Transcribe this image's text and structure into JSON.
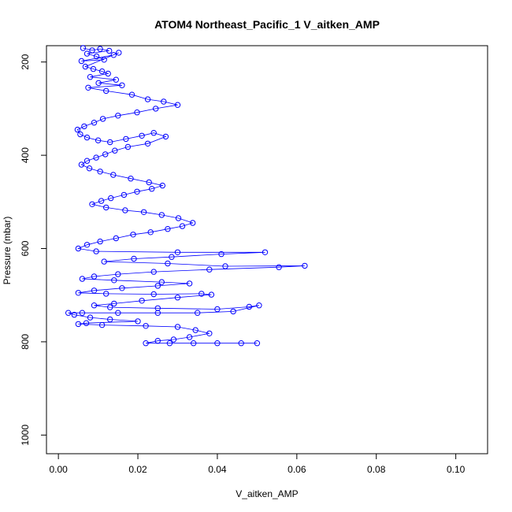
{
  "chart_data": {
    "type": "scatter",
    "title": "ATOM4 Northeast_Pacific_1 V_aitken_AMP",
    "xlabel": "V_aitken_AMP",
    "ylabel": "Pressure (mbar)",
    "xlim": [
      -0.003,
      0.108
    ],
    "ylim": [
      1040,
      165
    ],
    "y_reversed": true,
    "x_ticks": [
      0.0,
      0.02,
      0.04,
      0.06,
      0.08,
      0.1
    ],
    "x_tick_labels": [
      "0.00",
      "0.02",
      "0.04",
      "0.06",
      "0.08",
      "0.10"
    ],
    "y_ticks": [
      200,
      400,
      600,
      800,
      1000
    ],
    "y_tick_labels": [
      "200",
      "400",
      "600",
      "800",
      "1000"
    ],
    "grid": false,
    "marker": "open-circle",
    "lines_connect_points": true,
    "series_color": "#0000ff",
    "series": [
      {
        "name": "",
        "points": [
          [
            0.0062,
            170
          ],
          [
            0.0085,
            175
          ],
          [
            0.0105,
            172
          ],
          [
            0.0128,
            176
          ],
          [
            0.0072,
            182
          ],
          [
            0.0096,
            188
          ],
          [
            0.0115,
            195
          ],
          [
            0.0058,
            198
          ],
          [
            0.0139,
            185
          ],
          [
            0.0152,
            180
          ],
          [
            0.0068,
            210
          ],
          [
            0.0088,
            215
          ],
          [
            0.011,
            220
          ],
          [
            0.0125,
            225
          ],
          [
            0.008,
            232
          ],
          [
            0.0145,
            238
          ],
          [
            0.0101,
            245
          ],
          [
            0.016,
            250
          ],
          [
            0.0075,
            255
          ],
          [
            0.012,
            262
          ],
          [
            0.0185,
            270
          ],
          [
            0.0225,
            280
          ],
          [
            0.0265,
            285
          ],
          [
            0.03,
            292
          ],
          [
            0.0245,
            300
          ],
          [
            0.0198,
            308
          ],
          [
            0.015,
            315
          ],
          [
            0.0112,
            322
          ],
          [
            0.009,
            330
          ],
          [
            0.0065,
            338
          ],
          [
            0.0048,
            345
          ],
          [
            0.0055,
            355
          ],
          [
            0.0072,
            362
          ],
          [
            0.01,
            368
          ],
          [
            0.013,
            372
          ],
          [
            0.017,
            365
          ],
          [
            0.021,
            358
          ],
          [
            0.024,
            352
          ],
          [
            0.027,
            360
          ],
          [
            0.0225,
            375
          ],
          [
            0.0175,
            382
          ],
          [
            0.0142,
            390
          ],
          [
            0.0118,
            398
          ],
          [
            0.0095,
            405
          ],
          [
            0.0072,
            412
          ],
          [
            0.0058,
            420
          ],
          [
            0.0078,
            428
          ],
          [
            0.0105,
            435
          ],
          [
            0.0138,
            442
          ],
          [
            0.0182,
            450
          ],
          [
            0.0228,
            458
          ],
          [
            0.0262,
            465
          ],
          [
            0.0235,
            472
          ],
          [
            0.0198,
            478
          ],
          [
            0.0165,
            485
          ],
          [
            0.0132,
            492
          ],
          [
            0.0108,
            498
          ],
          [
            0.0085,
            505
          ],
          [
            0.012,
            512
          ],
          [
            0.0168,
            518
          ],
          [
            0.0215,
            522
          ],
          [
            0.026,
            528
          ],
          [
            0.0302,
            535
          ],
          [
            0.0338,
            545
          ],
          [
            0.0312,
            552
          ],
          [
            0.0275,
            558
          ],
          [
            0.0232,
            565
          ],
          [
            0.0188,
            570
          ],
          [
            0.0145,
            578
          ],
          [
            0.0105,
            585
          ],
          [
            0.0072,
            592
          ],
          [
            0.005,
            600
          ],
          [
            0.0095,
            606
          ],
          [
            0.03,
            608
          ],
          [
            0.052,
            608
          ],
          [
            0.041,
            612
          ],
          [
            0.0285,
            618
          ],
          [
            0.019,
            622
          ],
          [
            0.0115,
            628
          ],
          [
            0.0275,
            632
          ],
          [
            0.042,
            638
          ],
          [
            0.062,
            637
          ],
          [
            0.0555,
            640
          ],
          [
            0.038,
            645
          ],
          [
            0.024,
            650
          ],
          [
            0.015,
            655
          ],
          [
            0.009,
            660
          ],
          [
            0.006,
            665
          ],
          [
            0.014,
            668
          ],
          [
            0.026,
            672
          ],
          [
            0.033,
            675
          ],
          [
            0.025,
            680
          ],
          [
            0.016,
            685
          ],
          [
            0.009,
            690
          ],
          [
            0.005,
            695
          ],
          [
            0.012,
            697
          ],
          [
            0.024,
            698
          ],
          [
            0.036,
            697
          ],
          [
            0.0385,
            699
          ],
          [
            0.03,
            705
          ],
          [
            0.021,
            712
          ],
          [
            0.014,
            718
          ],
          [
            0.009,
            722
          ],
          [
            0.013,
            726
          ],
          [
            0.025,
            728
          ],
          [
            0.04,
            730
          ],
          [
            0.048,
            725
          ],
          [
            0.0505,
            722
          ],
          [
            0.044,
            735
          ],
          [
            0.035,
            738
          ],
          [
            0.025,
            738
          ],
          [
            0.015,
            738
          ],
          [
            0.006,
            738
          ],
          [
            0.0025,
            738
          ],
          [
            0.004,
            742
          ],
          [
            0.008,
            748
          ],
          [
            0.013,
            752
          ],
          [
            0.02,
            756
          ],
          [
            0.007,
            760
          ],
          [
            0.005,
            762
          ],
          [
            0.011,
            764
          ],
          [
            0.022,
            766
          ],
          [
            0.03,
            768
          ],
          [
            0.0345,
            775
          ],
          [
            0.038,
            782
          ],
          [
            0.033,
            790
          ],
          [
            0.029,
            795
          ],
          [
            0.025,
            798
          ],
          [
            0.022,
            803
          ],
          [
            0.028,
            803
          ],
          [
            0.034,
            803
          ],
          [
            0.04,
            803
          ],
          [
            0.046,
            803
          ],
          [
            0.05,
            803
          ]
        ]
      }
    ]
  }
}
